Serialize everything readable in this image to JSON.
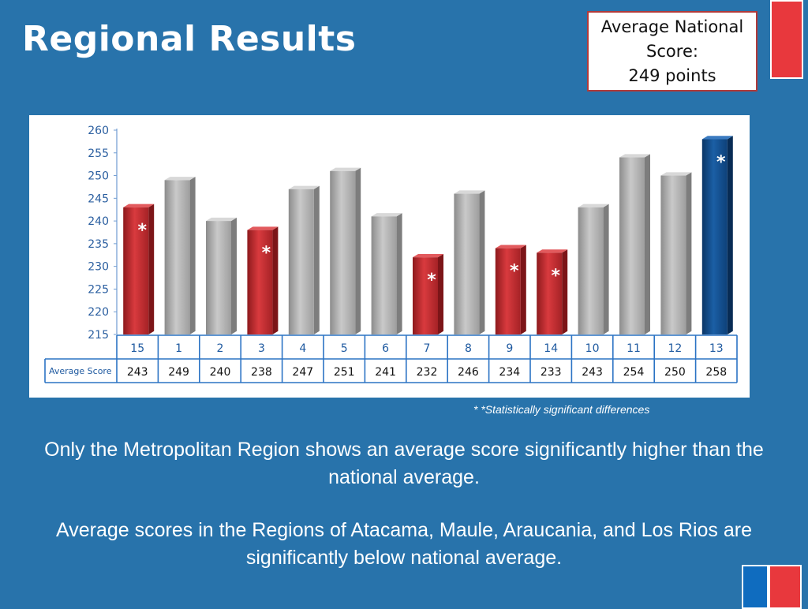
{
  "slide": {
    "title": "Regional Results",
    "callout": {
      "line1": "Average National",
      "line2": "Score:",
      "line3": "249 points"
    },
    "footnote": "* *Statistically significant differences",
    "paragraph1": "Only the Metropolitan Region shows an average score significantly higher than the national average.",
    "paragraph2": "Average scores in the Regions of Atacama, Maule, Araucania, and Los Rios are significantly below national average.",
    "colors": {
      "background": "#2873ab",
      "accent_red": "#e8383d",
      "bar_below": "#c62a2e",
      "bar_neutral": "#b5b5b5",
      "bar_above": "#0f4f8f"
    }
  },
  "chart_data": {
    "type": "bar",
    "categories": [
      "15",
      "1",
      "2",
      "3",
      "4",
      "5",
      "6",
      "7",
      "8",
      "9",
      "14",
      "10",
      "11",
      "12",
      "13"
    ],
    "values": [
      243,
      249,
      240,
      238,
      247,
      251,
      241,
      232,
      246,
      234,
      233,
      243,
      254,
      250,
      258
    ],
    "significance": [
      "below",
      "none",
      "none",
      "below",
      "none",
      "none",
      "none",
      "below",
      "none",
      "below",
      "below",
      "none",
      "none",
      "none",
      "above"
    ],
    "marker": "*",
    "table_row_label": "Average Score",
    "ylim": [
      215,
      260
    ],
    "yticks": [
      215,
      220,
      225,
      230,
      235,
      240,
      245,
      250,
      255,
      260
    ],
    "grid": false,
    "legend": "none"
  }
}
